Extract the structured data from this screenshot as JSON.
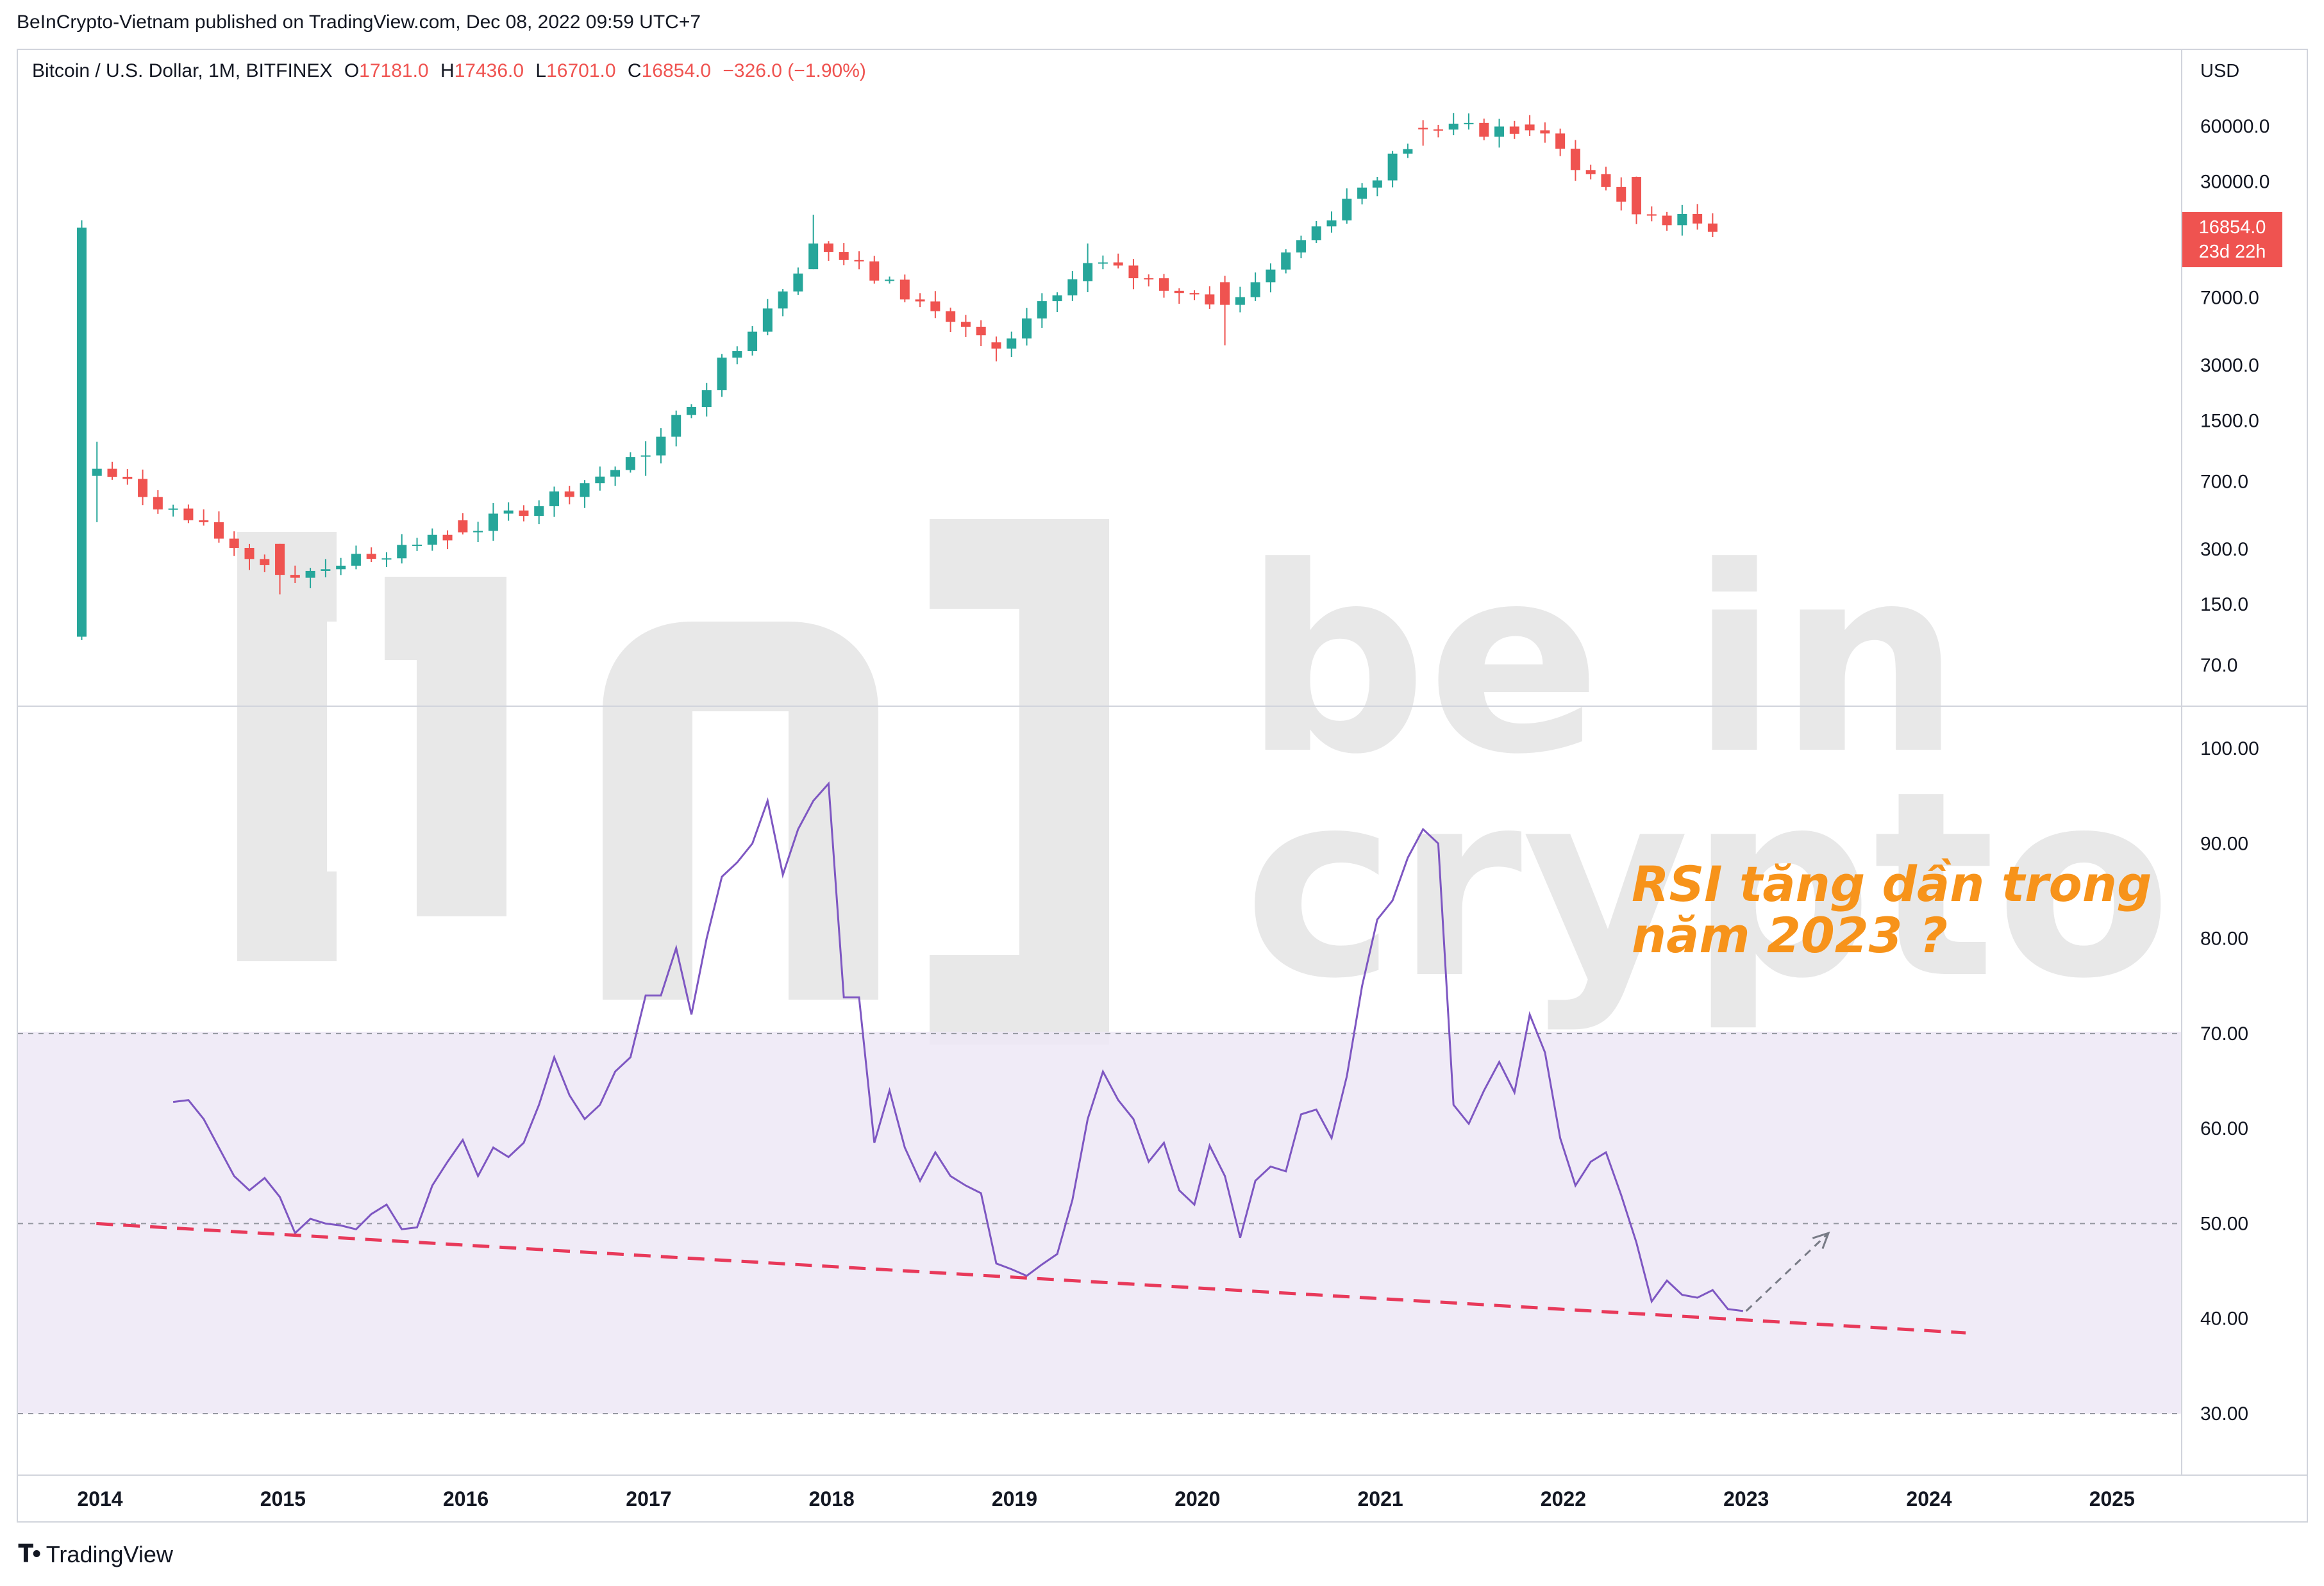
{
  "header": {
    "publish_line": "BeInCrypto-Vietnam published on TradingView.com, Dec 08, 2022 09:59 UTC+7"
  },
  "legend": {
    "symbol": "Bitcoin / U.S. Dollar, 1M, BITFINEX",
    "open_label": "O",
    "open": "17181.0",
    "high_label": "H",
    "high": "17436.0",
    "low_label": "L",
    "low": "16701.0",
    "close_label": "C",
    "close": "16854.0",
    "change": "−326.0 (−1.90%)"
  },
  "price_axis": {
    "currency": "USD",
    "last_price": "16854.0",
    "countdown": "23d 22h"
  },
  "annotation": {
    "line1": "RSI tăng dần trong",
    "line2": "năm 2023 ?"
  },
  "footer": {
    "brand": "TradingView"
  },
  "watermark": {
    "text": "be in crypto"
  },
  "colors": {
    "up": "#26a69a",
    "down": "#ef5350",
    "rsi": "#7e57c2",
    "rsi_band": "#ede7f6",
    "trendline": "#e8395a",
    "annotation": "#f7931a"
  },
  "chart_data": [
    {
      "type": "candlestick",
      "title": "Bitcoin / U.S. Dollar, 1M, BITFINEX",
      "scale": "log",
      "yticks": [
        "60000.0",
        "30000.0",
        "7000.0",
        "3000.0",
        "1500.0",
        "700.0",
        "300.0",
        "150.0",
        "70.0"
      ],
      "xticks": [
        "2014",
        "2015",
        "2016",
        "2017",
        "2018",
        "2019",
        "2020",
        "2021",
        "2022",
        "2023",
        "2024",
        "2025"
      ],
      "ohlc_approx_yearly": [
        {
          "x": "2014-01",
          "open": 750,
          "high": 1150,
          "low": 420,
          "close": 820
        },
        {
          "x": "2015-01",
          "open": 320,
          "high": 320,
          "low": 170,
          "close": 217
        },
        {
          "x": "2016-01",
          "open": 430,
          "high": 470,
          "low": 360,
          "close": 370
        },
        {
          "x": "2017-01",
          "open": 963,
          "high": 1160,
          "low": 750,
          "close": 970
        },
        {
          "x": "2017-12",
          "open": 10000,
          "high": 19800,
          "low": 10000,
          "close": 13800
        },
        {
          "x": "2018-12",
          "open": 4000,
          "high": 4300,
          "low": 3150,
          "close": 3700
        },
        {
          "x": "2019-06",
          "open": 8600,
          "high": 13800,
          "low": 7500,
          "close": 10800
        },
        {
          "x": "2020-03",
          "open": 8500,
          "high": 9200,
          "low": 3850,
          "close": 6400
        },
        {
          "x": "2021-04",
          "open": 58800,
          "high": 64800,
          "low": 47000,
          "close": 57700
        },
        {
          "x": "2021-11",
          "open": 61300,
          "high": 69000,
          "low": 53200,
          "close": 57000
        },
        {
          "x": "2022-06",
          "open": 31800,
          "high": 31900,
          "low": 17600,
          "close": 19900
        },
        {
          "x": "2022-12",
          "open": 17181,
          "high": 17436,
          "low": 16701,
          "close": 16854
        }
      ]
    },
    {
      "type": "line",
      "name": "RSI",
      "yticks": [
        "100.00",
        "90.00",
        "80.00",
        "70.00",
        "60.00",
        "50.00",
        "40.00",
        "30.00"
      ],
      "ylim": [
        30,
        100
      ],
      "band": [
        30,
        70
      ],
      "levels": [
        70,
        50,
        30
      ],
      "x_start": 2014.4,
      "step_months": 1,
      "values": [
        62.8,
        63.0,
        61.0,
        58.0,
        55.0,
        53.5,
        54.8,
        52.8,
        49.0,
        50.5,
        50.0,
        49.8,
        49.4,
        51.0,
        52.0,
        49.4,
        49.6,
        54.0,
        56.5,
        58.8,
        55.0,
        58.0,
        57.0,
        58.5,
        62.5,
        67.5,
        63.5,
        61.0,
        62.5,
        66.0,
        67.5,
        74.0,
        74.0,
        79.0,
        72.0,
        80.0,
        86.5,
        88.0,
        90.0,
        94.5,
        86.7,
        91.5,
        94.5,
        96.3,
        73.8,
        73.8,
        58.5,
        64.0,
        58.0,
        54.5,
        57.5,
        55.0,
        54.0,
        53.2,
        45.8,
        45.2,
        44.5,
        45.7,
        46.8,
        52.5,
        61.0,
        66.0,
        63.0,
        61.0,
        56.5,
        58.5,
        53.5,
        52.0,
        58.2,
        55.0,
        48.5,
        54.5,
        56.0,
        55.5,
        61.5,
        62.0,
        59.0,
        65.5,
        75.0,
        82.0,
        84.0,
        88.5,
        91.5,
        90.0,
        62.5,
        60.5,
        64.0,
        67.0,
        63.8,
        72.0,
        68.0,
        59.0,
        54.0,
        56.5,
        57.5,
        53.0,
        48.0,
        41.8,
        44.0,
        42.5,
        42.2,
        43.0,
        41.0,
        40.8
      ],
      "trendline": {
        "from": {
          "x": 2013.98,
          "y": 50.0
        },
        "to": {
          "x": 2024.2,
          "y": 38.5
        }
      },
      "projection": {
        "from": {
          "x": 2023.0,
          "y": 40.8
        },
        "to": {
          "x": 2023.45,
          "y": 49.0
        }
      }
    }
  ]
}
